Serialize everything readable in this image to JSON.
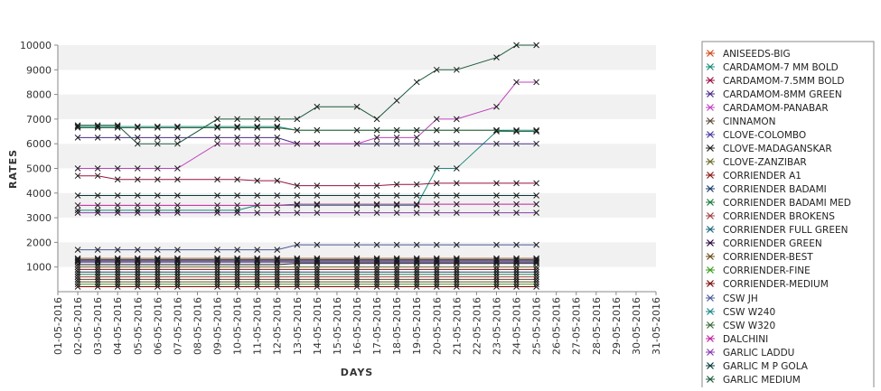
{
  "chart_data": {
    "type": "line",
    "title": "",
    "xlabel": "DAYS",
    "ylabel": "RATES",
    "x": [
      "01-05-2016",
      "02-05-2016",
      "03-05-2016",
      "04-05-2016",
      "05-05-2016",
      "06-05-2016",
      "07-05-2016",
      "08-05-2016",
      "09-05-2016",
      "10-05-2016",
      "11-05-2016",
      "12-05-2016",
      "13-05-2016",
      "14-05-2016",
      "15-05-2016",
      "16-05-2016",
      "17-05-2016",
      "18-05-2016",
      "19-05-2016",
      "20-05-2016",
      "21-05-2016",
      "22-05-2016",
      "23-05-2016",
      "24-05-2016",
      "25-05-2016",
      "26-05-2016",
      "27-05-2016",
      "28-05-2016",
      "29-05-2016",
      "30-05-2016",
      "31-05-2016"
    ],
    "ylim": [
      0,
      10000
    ],
    "yticks": [
      1000,
      2000,
      3000,
      4000,
      5000,
      6000,
      7000,
      8000,
      9000,
      10000
    ],
    "grid": "alternating horizontal bands",
    "legend_position": "right",
    "series": [
      {
        "name": "ANISEEDS-BIG",
        "color": "#d04a1a",
        "values": [
          null,
          1350,
          1350,
          1350,
          1350,
          1350,
          1350,
          null,
          1350,
          1350,
          1350,
          1350,
          1350,
          1350,
          null,
          1350,
          1350,
          1350,
          1350,
          1350,
          1350,
          null,
          1350,
          1350,
          1350,
          null,
          null,
          null,
          null,
          null,
          null
        ]
      },
      {
        "name": "CARDAMOM-7 MM BOLD",
        "color": "#1a8a7a",
        "values": [
          null,
          3300,
          3300,
          3300,
          3300,
          3300,
          3300,
          null,
          3300,
          3300,
          3500,
          3500,
          3500,
          3500,
          null,
          3500,
          3500,
          3500,
          3500,
          5000,
          5000,
          null,
          6500,
          6500,
          6500,
          null,
          null,
          null,
          null,
          null,
          null
        ]
      },
      {
        "name": "CARDAMOM-7.5MM BOLD",
        "color": "#9a1040",
        "values": [
          null,
          4700,
          4700,
          4550,
          4550,
          4550,
          4550,
          null,
          4550,
          4550,
          4500,
          4500,
          4300,
          4300,
          null,
          4300,
          4300,
          4350,
          4350,
          4400,
          4400,
          null,
          4400,
          4400,
          4400,
          null,
          null,
          null,
          null,
          null,
          null
        ]
      },
      {
        "name": "CARDAMOM-8MM GREEN",
        "color": "#4a2a8a",
        "values": [
          null,
          6250,
          6250,
          6250,
          6250,
          6250,
          6250,
          null,
          6250,
          6250,
          6250,
          6250,
          6000,
          6000,
          null,
          6000,
          6000,
          6000,
          6000,
          6000,
          6000,
          null,
          6000,
          6000,
          6000,
          null,
          null,
          null,
          null,
          null,
          null
        ]
      },
      {
        "name": "CARDAMOM-PANABAR",
        "color": "#c040c0",
        "values": [
          null,
          5000,
          5000,
          5000,
          5000,
          5000,
          5000,
          null,
          6000,
          6000,
          6000,
          6000,
          6000,
          6000,
          null,
          6000,
          6250,
          6250,
          6250,
          7000,
          7000,
          null,
          7500,
          8500,
          8500,
          null,
          null,
          null,
          null,
          null,
          null
        ]
      },
      {
        "name": "CINNAMON",
        "color": "#5a4a3a",
        "values": [
          null,
          500,
          500,
          500,
          500,
          500,
          500,
          null,
          500,
          500,
          500,
          500,
          500,
          500,
          null,
          500,
          500,
          500,
          500,
          500,
          500,
          null,
          500,
          500,
          500,
          null,
          null,
          null,
          null,
          null,
          null
        ]
      },
      {
        "name": "CLOVE-COLOMBO",
        "color": "#4a3aa0",
        "values": [
          null,
          1200,
          1200,
          1200,
          1200,
          1200,
          1200,
          null,
          1200,
          1200,
          1200,
          1200,
          1200,
          1200,
          null,
          1200,
          1200,
          1200,
          1200,
          1200,
          1200,
          null,
          1200,
          1200,
          1200,
          null,
          null,
          null,
          null,
          null,
          null
        ]
      },
      {
        "name": "CLOVE-MADAGANSKAR",
        "color": "#222222",
        "values": [
          null,
          1100,
          1100,
          1100,
          1100,
          1100,
          1100,
          null,
          1100,
          1100,
          1100,
          1100,
          1150,
          1150,
          null,
          1150,
          1150,
          1150,
          1150,
          1150,
          1150,
          null,
          1150,
          1150,
          1150,
          null,
          null,
          null,
          null,
          null,
          null
        ]
      },
      {
        "name": "CLOVE-ZANZIBAR",
        "color": "#6a6a2a",
        "values": [
          null,
          1000,
          1000,
          1000,
          1000,
          1000,
          1000,
          null,
          1000,
          1000,
          1000,
          1000,
          1000,
          1000,
          null,
          1000,
          1000,
          1000,
          1000,
          1000,
          1000,
          null,
          1000,
          1000,
          1000,
          null,
          null,
          null,
          null,
          null,
          null
        ]
      },
      {
        "name": "CORRIENDER A1",
        "color": "#8a1a1a",
        "values": [
          null,
          900,
          900,
          900,
          900,
          900,
          900,
          null,
          900,
          900,
          900,
          900,
          900,
          900,
          null,
          900,
          900,
          900,
          900,
          900,
          900,
          null,
          900,
          900,
          900,
          null,
          null,
          null,
          null,
          null,
          null
        ]
      },
      {
        "name": "CORRIENDER BADAMI",
        "color": "#1a3a6a",
        "values": [
          null,
          800,
          800,
          800,
          800,
          800,
          800,
          null,
          800,
          800,
          800,
          800,
          800,
          800,
          null,
          800,
          800,
          800,
          800,
          800,
          800,
          null,
          800,
          800,
          800,
          null,
          null,
          null,
          null,
          null,
          null
        ]
      },
      {
        "name": "CORRIENDER BADAMI MED",
        "color": "#1a7a3a",
        "values": [
          null,
          700,
          700,
          700,
          700,
          700,
          700,
          null,
          700,
          700,
          700,
          700,
          700,
          700,
          null,
          700,
          700,
          700,
          700,
          700,
          700,
          null,
          700,
          700,
          700,
          null,
          null,
          null,
          null,
          null,
          null
        ]
      },
      {
        "name": "CORRIENDER BROKENS",
        "color": "#a04040",
        "values": [
          null,
          600,
          600,
          600,
          600,
          600,
          600,
          null,
          600,
          600,
          600,
          600,
          600,
          600,
          null,
          600,
          600,
          600,
          600,
          600,
          600,
          null,
          600,
          600,
          600,
          null,
          null,
          null,
          null,
          null,
          null
        ]
      },
      {
        "name": "CORRIENDER FULL GREEN",
        "color": "#1a6a7a",
        "values": [
          null,
          1300,
          1300,
          1300,
          1300,
          1300,
          1300,
          null,
          1300,
          1300,
          1300,
          1300,
          1300,
          1300,
          null,
          1300,
          1300,
          1300,
          1300,
          1300,
          1300,
          null,
          1300,
          1300,
          1300,
          null,
          null,
          null,
          null,
          null,
          null
        ]
      },
      {
        "name": "CORRIENDER GREEN",
        "color": "#2a0a3a",
        "values": [
          null,
          1250,
          1250,
          1250,
          1250,
          1250,
          1250,
          null,
          1250,
          1250,
          1250,
          1250,
          1250,
          1250,
          null,
          1250,
          1250,
          1250,
          1250,
          1250,
          1250,
          null,
          1250,
          1250,
          1250,
          null,
          null,
          null,
          null,
          null,
          null
        ]
      },
      {
        "name": "CORRIENDER-BEST",
        "color": "#6a4a1a",
        "values": [
          null,
          400,
          400,
          400,
          400,
          400,
          400,
          null,
          400,
          400,
          400,
          400,
          400,
          400,
          null,
          400,
          400,
          400,
          400,
          400,
          400,
          null,
          400,
          400,
          400,
          null,
          null,
          null,
          null,
          null,
          null
        ]
      },
      {
        "name": "CORRIENDER-FINE",
        "color": "#3a9a1a",
        "values": [
          null,
          300,
          300,
          300,
          300,
          300,
          300,
          null,
          300,
          300,
          300,
          300,
          300,
          300,
          null,
          300,
          300,
          300,
          300,
          300,
          300,
          null,
          300,
          300,
          300,
          null,
          null,
          null,
          null,
          null,
          null
        ]
      },
      {
        "name": "CORRIENDER-MEDIUM",
        "color": "#7a0a0a",
        "values": [
          null,
          200,
          200,
          200,
          200,
          200,
          200,
          null,
          200,
          200,
          200,
          200,
          200,
          200,
          null,
          200,
          200,
          200,
          200,
          200,
          200,
          null,
          200,
          200,
          200,
          null,
          null,
          null,
          null,
          null,
          null
        ]
      },
      {
        "name": "CSW JH",
        "color": "#4a5a9a",
        "values": [
          null,
          1700,
          1700,
          1700,
          1700,
          1700,
          1700,
          null,
          1700,
          1700,
          1700,
          1700,
          1900,
          1900,
          null,
          1900,
          1900,
          1900,
          1900,
          1900,
          1900,
          null,
          1900,
          1900,
          1900,
          null,
          null,
          null,
          null,
          null,
          null
        ]
      },
      {
        "name": "CSW W240",
        "color": "#1a8a8a",
        "values": [
          null,
          6700,
          6700,
          6700,
          6700,
          6700,
          6700,
          null,
          6700,
          6700,
          6700,
          6700,
          6550,
          6550,
          null,
          6550,
          6550,
          6550,
          6550,
          6550,
          6550,
          null,
          6550,
          6550,
          6550,
          null,
          null,
          null,
          null,
          null,
          null
        ]
      },
      {
        "name": "CSW W320",
        "color": "#3a6a3a",
        "values": [
          null,
          6650,
          6650,
          6650,
          6650,
          6650,
          6650,
          null,
          6650,
          6650,
          6650,
          6650,
          6550,
          6550,
          null,
          6550,
          6550,
          6550,
          6550,
          6550,
          6550,
          null,
          6550,
          6500,
          6500,
          null,
          null,
          null,
          null,
          null,
          null
        ]
      },
      {
        "name": "DALCHINI",
        "color": "#c020a0",
        "values": [
          null,
          3500,
          3500,
          3500,
          3500,
          3500,
          3500,
          null,
          3500,
          3500,
          3500,
          3500,
          3550,
          3550,
          null,
          3550,
          3550,
          3550,
          3550,
          3550,
          3550,
          null,
          3550,
          3550,
          3550,
          null,
          null,
          null,
          null,
          null,
          null
        ]
      },
      {
        "name": "GARLIC LADDU",
        "color": "#8a3ab0",
        "values": [
          null,
          3200,
          3200,
          3200,
          3200,
          3200,
          3200,
          null,
          3200,
          3200,
          3200,
          3200,
          3200,
          3200,
          null,
          3200,
          3200,
          3200,
          3200,
          3200,
          3200,
          null,
          3200,
          3200,
          3200,
          null,
          null,
          null,
          null,
          null,
          null
        ]
      },
      {
        "name": "GARLIC M P GOLA",
        "color": "#0a3a3a",
        "values": [
          null,
          3900,
          3900,
          3900,
          3900,
          3900,
          3900,
          null,
          3900,
          3900,
          3900,
          3900,
          3900,
          3900,
          null,
          3900,
          3900,
          3900,
          3900,
          3900,
          3900,
          null,
          3900,
          3900,
          3900,
          null,
          null,
          null,
          null,
          null,
          null
        ]
      },
      {
        "name": "GARLIC MEDIUM",
        "color": "#1a5a3a",
        "values": [
          null,
          6750,
          6750,
          6750,
          6000,
          6000,
          6000,
          null,
          7000,
          7000,
          7000,
          7000,
          7000,
          7500,
          null,
          7500,
          7000,
          7750,
          8500,
          9000,
          9000,
          null,
          9500,
          10000,
          10000,
          null,
          null,
          null,
          null,
          null,
          null
        ]
      }
    ]
  }
}
